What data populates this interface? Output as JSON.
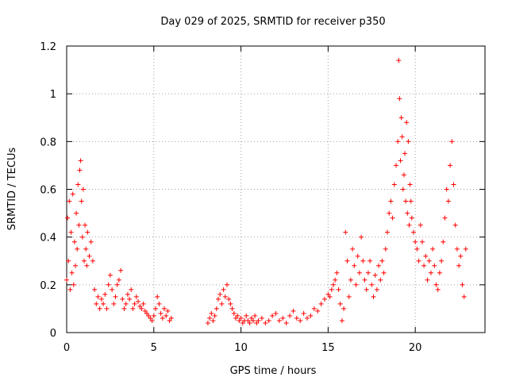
{
  "chart_data": {
    "type": "scatter",
    "title": "Day 029 of 2025, SRMTID for receiver p350",
    "xlabel": "GPS time / hours",
    "ylabel": "SRMTID / TECUs",
    "xlim": [
      0,
      24
    ],
    "ylim": [
      0,
      1.2
    ],
    "xticks": [
      0,
      5,
      10,
      15,
      20
    ],
    "xtick_labels": [
      "0",
      "5",
      "10",
      "15",
      "20"
    ],
    "yticks": [
      0,
      0.2,
      0.4,
      0.6,
      0.8,
      1,
      1.2
    ],
    "ytick_labels": [
      "0",
      "0.2",
      "0.4",
      "0.6",
      "0.8",
      "1",
      "1.2"
    ],
    "grid": true,
    "marker": "+",
    "series": [
      {
        "name": "SRMTID",
        "color": "#ff0000",
        "x": [
          0.0,
          0.05,
          0.1,
          0.15,
          0.2,
          0.25,
          0.3,
          0.35,
          0.4,
          0.45,
          0.5,
          0.55,
          0.6,
          0.65,
          0.7,
          0.75,
          0.8,
          0.85,
          0.9,
          0.95,
          1.0,
          1.05,
          1.1,
          1.15,
          1.2,
          1.3,
          1.4,
          1.5,
          1.6,
          1.7,
          1.8,
          1.9,
          2.0,
          2.1,
          2.2,
          2.3,
          2.4,
          2.5,
          2.6,
          2.7,
          2.8,
          2.9,
          3.0,
          3.1,
          3.2,
          3.3,
          3.4,
          3.5,
          3.6,
          3.7,
          3.8,
          3.9,
          4.0,
          4.1,
          4.2,
          4.3,
          4.4,
          4.5,
          4.6,
          4.7,
          4.8,
          4.9,
          5.0,
          5.1,
          5.2,
          5.3,
          5.4,
          5.5,
          5.6,
          5.7,
          5.8,
          5.9,
          6.0,
          8.1,
          8.2,
          8.3,
          8.4,
          8.5,
          8.6,
          8.7,
          8.8,
          8.9,
          9.0,
          9.1,
          9.2,
          9.3,
          9.4,
          9.5,
          9.6,
          9.7,
          9.8,
          9.9,
          10.0,
          10.1,
          10.2,
          10.3,
          10.4,
          10.5,
          10.6,
          10.7,
          10.8,
          10.9,
          11.0,
          11.2,
          11.4,
          11.6,
          11.8,
          12.0,
          12.2,
          12.4,
          12.6,
          12.8,
          13.0,
          13.2,
          13.4,
          13.6,
          13.8,
          14.0,
          14.2,
          14.4,
          14.6,
          14.8,
          15.0,
          15.1,
          15.2,
          15.3,
          15.4,
          15.5,
          15.6,
          15.7,
          15.8,
          15.9,
          16.0,
          16.1,
          16.2,
          16.3,
          16.4,
          16.5,
          16.6,
          16.7,
          16.8,
          16.9,
          17.0,
          17.1,
          17.2,
          17.3,
          17.4,
          17.5,
          17.6,
          17.7,
          17.8,
          17.9,
          18.0,
          18.1,
          18.2,
          18.3,
          18.4,
          18.5,
          18.6,
          18.7,
          18.8,
          18.9,
          19.0,
          19.05,
          19.1,
          19.15,
          19.2,
          19.25,
          19.3,
          19.35,
          19.4,
          19.45,
          19.5,
          19.55,
          19.6,
          19.65,
          19.7,
          19.75,
          19.8,
          19.9,
          20.0,
          20.1,
          20.2,
          20.3,
          20.4,
          20.5,
          20.6,
          20.7,
          20.8,
          20.9,
          21.0,
          21.1,
          21.2,
          21.3,
          21.4,
          21.5,
          21.6,
          21.7,
          21.8,
          21.9,
          22.0,
          22.1,
          22.2,
          22.3,
          22.4,
          22.5,
          22.6,
          22.7,
          22.8,
          22.9
        ],
        "y": [
          0.22,
          0.48,
          0.3,
          0.55,
          0.18,
          0.42,
          0.25,
          0.58,
          0.2,
          0.38,
          0.28,
          0.5,
          0.35,
          0.62,
          0.45,
          0.68,
          0.72,
          0.55,
          0.4,
          0.6,
          0.3,
          0.45,
          0.35,
          0.28,
          0.42,
          0.32,
          0.38,
          0.3,
          0.18,
          0.12,
          0.15,
          0.1,
          0.14,
          0.12,
          0.16,
          0.1,
          0.2,
          0.24,
          0.18,
          0.12,
          0.15,
          0.2,
          0.22,
          0.26,
          0.14,
          0.1,
          0.12,
          0.16,
          0.14,
          0.18,
          0.1,
          0.12,
          0.15,
          0.13,
          0.11,
          0.1,
          0.12,
          0.09,
          0.08,
          0.07,
          0.06,
          0.05,
          0.07,
          0.1,
          0.15,
          0.12,
          0.08,
          0.06,
          0.1,
          0.07,
          0.09,
          0.05,
          0.06,
          0.04,
          0.06,
          0.08,
          0.05,
          0.07,
          0.1,
          0.14,
          0.16,
          0.12,
          0.18,
          0.15,
          0.2,
          0.14,
          0.12,
          0.1,
          0.08,
          0.06,
          0.07,
          0.05,
          0.06,
          0.04,
          0.05,
          0.07,
          0.05,
          0.04,
          0.06,
          0.05,
          0.07,
          0.04,
          0.05,
          0.06,
          0.04,
          0.05,
          0.07,
          0.08,
          0.05,
          0.06,
          0.04,
          0.07,
          0.09,
          0.06,
          0.05,
          0.08,
          0.06,
          0.07,
          0.1,
          0.09,
          0.12,
          0.14,
          0.16,
          0.15,
          0.18,
          0.2,
          0.22,
          0.25,
          0.18,
          0.12,
          0.05,
          0.1,
          0.42,
          0.3,
          0.15,
          0.22,
          0.35,
          0.28,
          0.2,
          0.32,
          0.25,
          0.4,
          0.3,
          0.22,
          0.18,
          0.25,
          0.3,
          0.2,
          0.15,
          0.24,
          0.18,
          0.28,
          0.22,
          0.3,
          0.25,
          0.35,
          0.42,
          0.5,
          0.55,
          0.48,
          0.62,
          0.7,
          0.8,
          1.14,
          0.98,
          0.72,
          0.9,
          0.82,
          0.6,
          0.66,
          0.75,
          0.55,
          0.88,
          0.5,
          0.8,
          0.45,
          0.62,
          0.55,
          0.48,
          0.42,
          0.38,
          0.35,
          0.3,
          0.45,
          0.38,
          0.28,
          0.32,
          0.22,
          0.3,
          0.25,
          0.35,
          0.28,
          0.2,
          0.18,
          0.25,
          0.3,
          0.38,
          0.48,
          0.6,
          0.55,
          0.7,
          0.8,
          0.62,
          0.45,
          0.35,
          0.28,
          0.32,
          0.2,
          0.15,
          0.35
        ]
      }
    ]
  }
}
